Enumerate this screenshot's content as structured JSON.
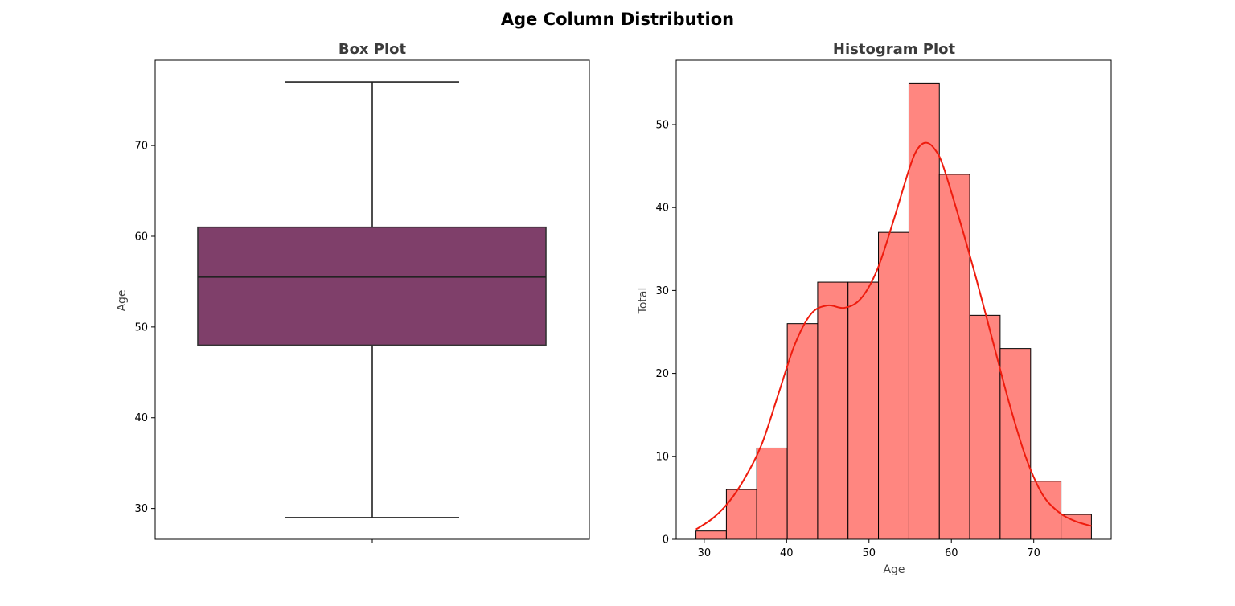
{
  "figure": {
    "title": "Age Column Distribution"
  },
  "chart_data": [
    {
      "type": "box",
      "title": "Box Plot",
      "xlabel": "",
      "ylabel": "Age",
      "ylim": [
        26.6,
        79.4
      ],
      "yticks": [
        30,
        40,
        50,
        60,
        70
      ],
      "min": 29,
      "q1": 48,
      "median": 55.5,
      "q3": 61,
      "max": 77,
      "color": "#7f3f6a",
      "grid": false
    },
    {
      "type": "bar",
      "title": "Histogram Plot",
      "xlabel": "Age",
      "ylabel": "Total",
      "xlim": [
        26.6,
        79.4
      ],
      "ylim": [
        0,
        57.75
      ],
      "xticks": [
        30,
        40,
        50,
        60,
        70
      ],
      "yticks": [
        0,
        10,
        20,
        30,
        40,
        50
      ],
      "bin_edges": [
        29,
        32.69,
        36.38,
        40.08,
        43.77,
        47.46,
        51.15,
        54.85,
        58.54,
        62.23,
        65.92,
        69.62,
        73.31,
        77
      ],
      "values": [
        1,
        6,
        11,
        26,
        31,
        31,
        37,
        55,
        44,
        27,
        23,
        7,
        3
      ],
      "bar_color": "#ff8680",
      "kde": {
        "x": [
          29,
          31,
          33,
          35,
          37,
          39,
          41,
          43,
          45,
          47,
          49,
          51,
          53,
          55,
          56,
          57,
          58,
          59,
          61,
          63,
          65,
          67,
          69,
          71,
          73,
          75,
          77
        ],
        "y": [
          1.2,
          2.5,
          4.5,
          7.5,
          11.5,
          17.5,
          23.5,
          27.2,
          28.2,
          27.9,
          29.0,
          32.5,
          38.5,
          45.0,
          47.2,
          47.8,
          47.0,
          45.0,
          38.5,
          31.5,
          24.0,
          16.5,
          10.0,
          5.5,
          3.3,
          2.2,
          1.6
        ],
        "color": "#ee1c0e"
      },
      "grid": false
    }
  ]
}
